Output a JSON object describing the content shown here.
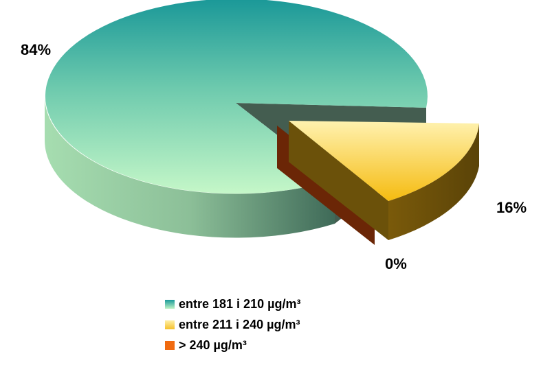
{
  "chart_data": {
    "type": "pie",
    "categories": [
      "entre 181 i 210 µg/m³",
      "entre 211 i 240 µg/m³",
      "> 240 µg/m³"
    ],
    "values": [
      84,
      16,
      0
    ],
    "data_labels": [
      "84%",
      "16%",
      "0%"
    ],
    "colors": [
      "#1a9a9a",
      "#f5c02a",
      "#f06a10"
    ],
    "style": "3d-exploded",
    "legend_position": "bottom"
  }
}
